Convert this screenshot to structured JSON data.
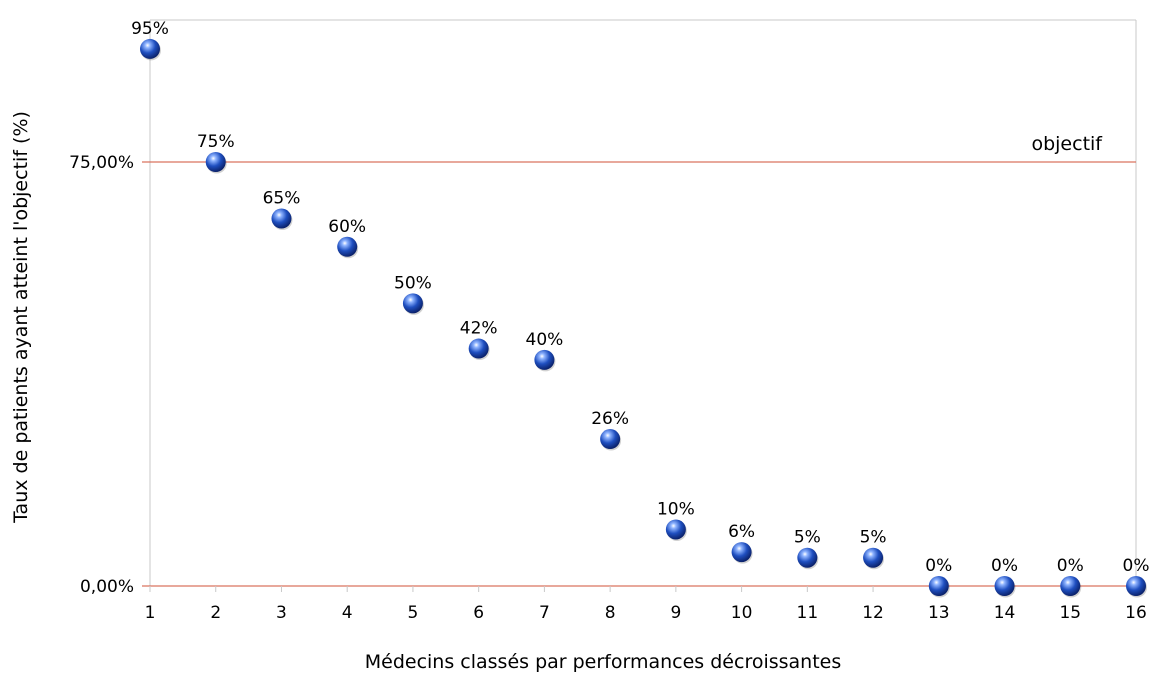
{
  "chart_data": {
    "type": "scatter",
    "xlabel": "Médecins classés par performances décroissantes",
    "ylabel": "Taux de patients ayant atteint l'objectif (%)",
    "x": [
      1,
      2,
      3,
      4,
      5,
      6,
      7,
      8,
      9,
      10,
      11,
      12,
      13,
      14,
      15,
      16
    ],
    "y": [
      95,
      75,
      65,
      60,
      50,
      42,
      40,
      26,
      10,
      6,
      5,
      5,
      0,
      0,
      0,
      0
    ],
    "data_labels": [
      "95%",
      "75%",
      "65%",
      "60%",
      "50%",
      "42%",
      "40%",
      "26%",
      "10%",
      "6%",
      "5%",
      "5%",
      "0%",
      "0%",
      "0%",
      "0%"
    ],
    "xlim": [
      1,
      16
    ],
    "x_ticks": [
      "1",
      "2",
      "3",
      "4",
      "5",
      "6",
      "7",
      "8",
      "9",
      "10",
      "11",
      "12",
      "13",
      "14",
      "15",
      "16"
    ],
    "y_ticks": [
      {
        "value": 0,
        "label": "0,00%"
      },
      {
        "value": 75,
        "label": "75,00%"
      }
    ],
    "reference_lines": [
      {
        "value": 0,
        "label": ""
      },
      {
        "value": 75,
        "label": "objectif"
      }
    ],
    "colors": {
      "marker": "#1f4fc0",
      "marker_highlight": "#8fb4ff",
      "reference_line": "#d9735f",
      "frame": "#c8c8c8"
    },
    "grid": false,
    "legend": "none"
  }
}
